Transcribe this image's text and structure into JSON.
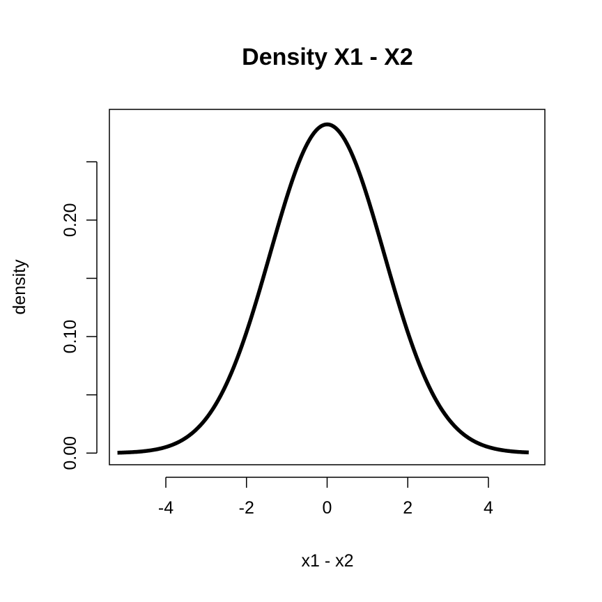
{
  "chart_data": {
    "type": "line",
    "title": "Density X1 - X2",
    "xlabel": "x1 - x2",
    "ylabel": "density",
    "xlim": [
      -5.4,
      5.4
    ],
    "ylim": [
      -0.01,
      0.295
    ],
    "x_ticks": [
      -4,
      -2,
      0,
      2,
      4
    ],
    "x_tick_labels": [
      "-4",
      "-2",
      "0",
      "2",
      "4"
    ],
    "y_ticks": [
      0.0,
      0.05,
      0.1,
      0.15,
      0.2,
      0.25
    ],
    "y_tick_labels": [
      "0.00",
      "",
      "0.10",
      "",
      "0.20",
      ""
    ],
    "grid": false,
    "legend": "none",
    "series": [
      {
        "distribution": "normal",
        "mean": 0,
        "sd": 1.414,
        "x_range": [
          -5.2,
          5.0
        ],
        "color": "#000000"
      }
    ]
  }
}
